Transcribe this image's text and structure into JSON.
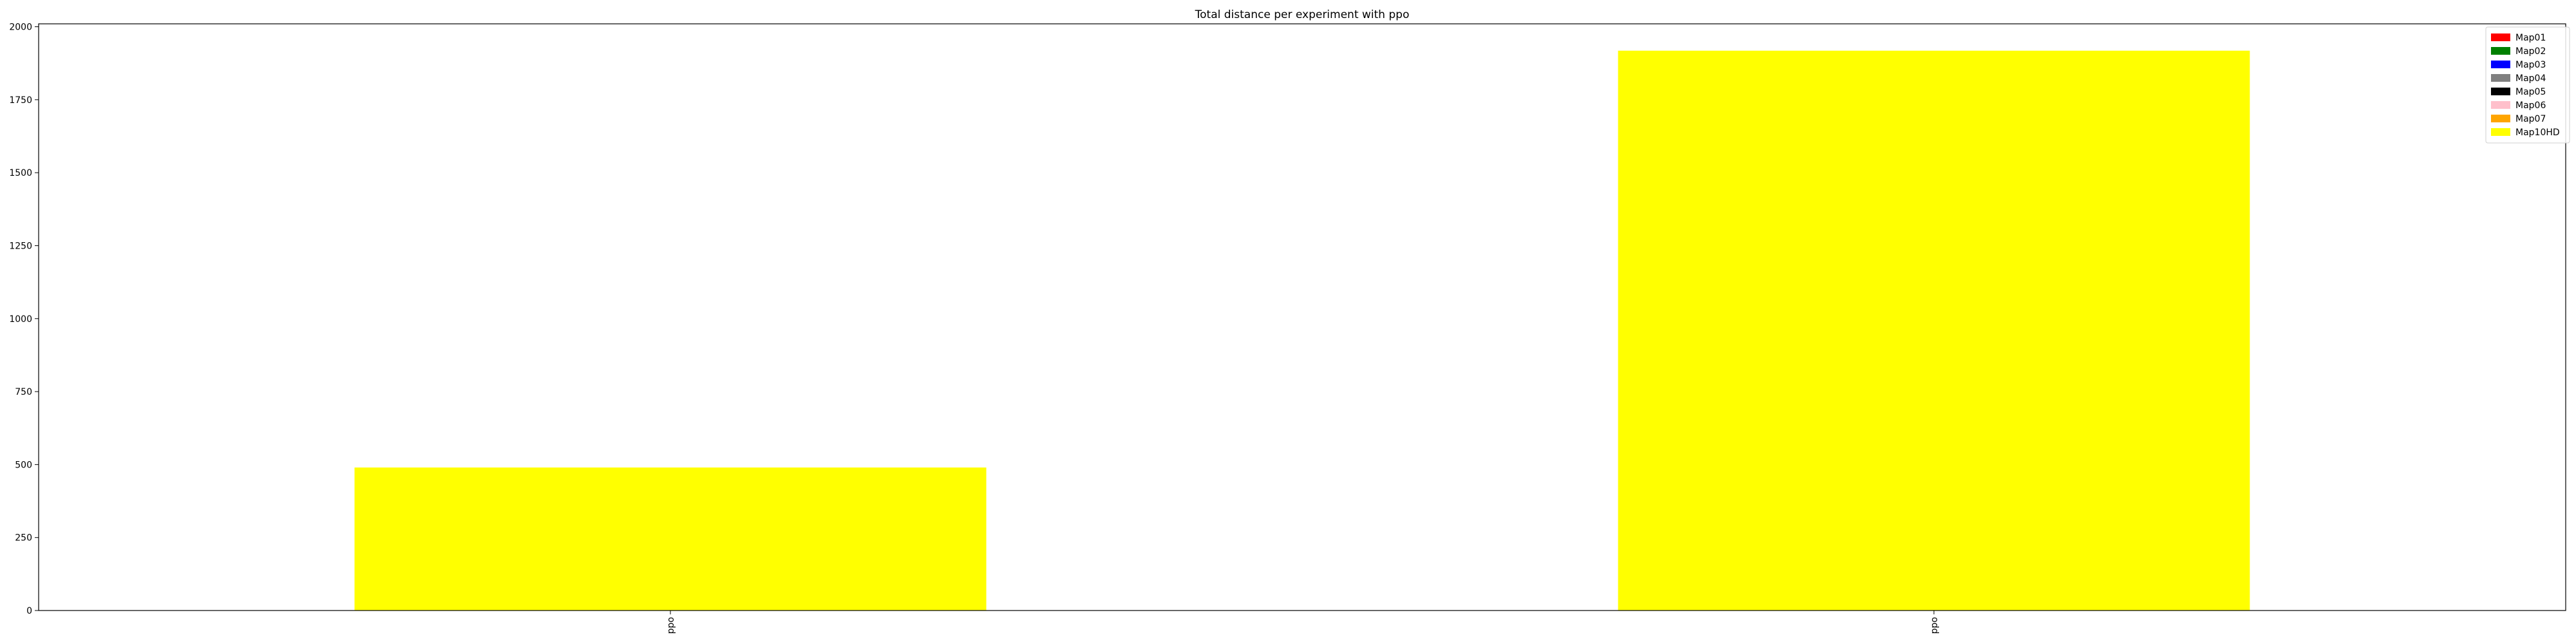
{
  "chart_data": {
    "type": "bar",
    "title": "Total distance per experiment with ppo",
    "xlabel": "",
    "ylabel": "",
    "categories": [
      "ppo",
      "ppo"
    ],
    "ylim": [
      0,
      2010
    ],
    "yticks": [
      0,
      250,
      500,
      750,
      1000,
      1250,
      1500,
      1750,
      2000
    ],
    "stacked": true,
    "grid": false,
    "legend_position": "top-right",
    "series": [
      {
        "name": "Map01",
        "color": "#ff0000",
        "values": [
          0,
          0
        ]
      },
      {
        "name": "Map02",
        "color": "#008000",
        "values": [
          0,
          0
        ]
      },
      {
        "name": "Map03",
        "color": "#0000ff",
        "values": [
          0,
          0
        ]
      },
      {
        "name": "Map04",
        "color": "#808080",
        "values": [
          0,
          0
        ]
      },
      {
        "name": "Map05",
        "color": "#000000",
        "values": [
          0,
          0
        ]
      },
      {
        "name": "Map06",
        "color": "#ffc0cb",
        "values": [
          0,
          0
        ]
      },
      {
        "name": "Map07",
        "color": "#ffa500",
        "values": [
          0,
          0
        ]
      },
      {
        "name": "Map10HD",
        "color": "#ffff00",
        "values": [
          490,
          1918
        ]
      }
    ]
  }
}
